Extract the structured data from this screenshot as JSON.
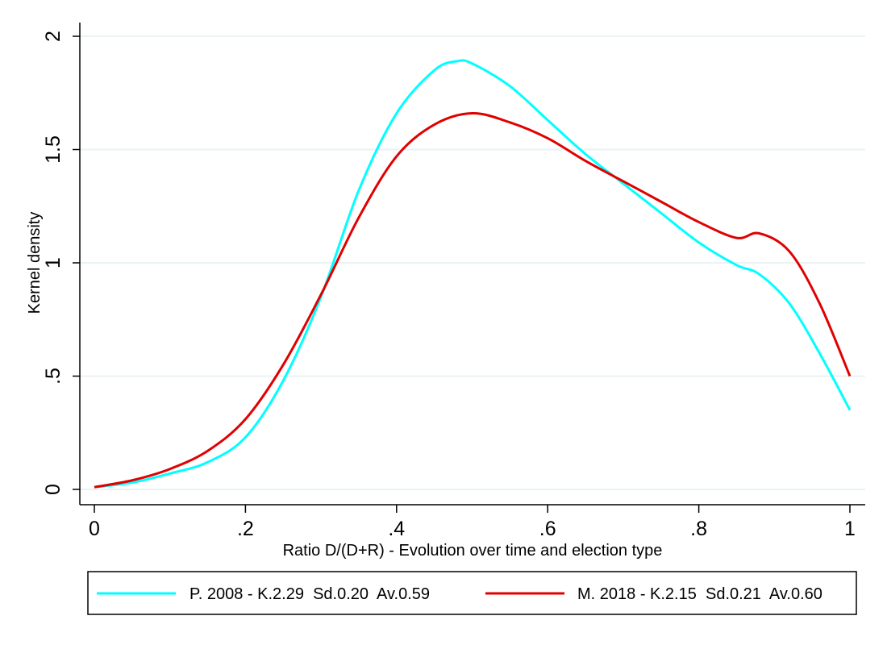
{
  "chart_data": {
    "type": "line",
    "xlabel": "Ratio D/(D+R) - Evolution over time and election type",
    "ylabel": "Kernel density",
    "xlim": [
      0,
      1
    ],
    "ylim": [
      0,
      2
    ],
    "x_ticks": [
      {
        "value": 0,
        "label": "0"
      },
      {
        "value": 0.2,
        "label": ".2"
      },
      {
        "value": 0.4,
        "label": ".4"
      },
      {
        "value": 0.6,
        "label": ".6"
      },
      {
        "value": 0.8,
        "label": ".8"
      },
      {
        "value": 1,
        "label": "1"
      }
    ],
    "y_ticks": [
      {
        "value": 0,
        "label": "0"
      },
      {
        "value": 0.5,
        "label": ".5"
      },
      {
        "value": 1,
        "label": "1"
      },
      {
        "value": 1.5,
        "label": "1.5"
      },
      {
        "value": 2,
        "label": "2"
      }
    ],
    "grid": "horizontal",
    "legend_position": "bottom",
    "series": [
      {
        "name": "P. 2008 - K.2.29  Sd.0.20  Av.0.59",
        "color": "#00FFFF",
        "x": [
          0,
          0.05,
          0.1,
          0.15,
          0.2,
          0.25,
          0.3,
          0.35,
          0.4,
          0.45,
          0.48,
          0.5,
          0.55,
          0.6,
          0.65,
          0.7,
          0.75,
          0.8,
          0.85,
          0.88,
          0.92,
          0.96,
          1.0
        ],
        "y": [
          0.01,
          0.03,
          0.07,
          0.12,
          0.23,
          0.48,
          0.85,
          1.32,
          1.66,
          1.85,
          1.89,
          1.88,
          1.78,
          1.63,
          1.48,
          1.35,
          1.22,
          1.09,
          0.99,
          0.95,
          0.82,
          0.6,
          0.35
        ]
      },
      {
        "name": "M. 2018 - K.2.15  Sd.0.21  Av.0.60",
        "color": "#E00000",
        "x": [
          0,
          0.05,
          0.1,
          0.15,
          0.2,
          0.25,
          0.3,
          0.35,
          0.4,
          0.45,
          0.5,
          0.55,
          0.6,
          0.65,
          0.7,
          0.75,
          0.8,
          0.85,
          0.88,
          0.92,
          0.96,
          1.0
        ],
        "y": [
          0.01,
          0.04,
          0.09,
          0.17,
          0.31,
          0.55,
          0.86,
          1.2,
          1.47,
          1.61,
          1.66,
          1.62,
          1.55,
          1.45,
          1.36,
          1.27,
          1.18,
          1.11,
          1.13,
          1.05,
          0.82,
          0.5
        ]
      }
    ]
  }
}
